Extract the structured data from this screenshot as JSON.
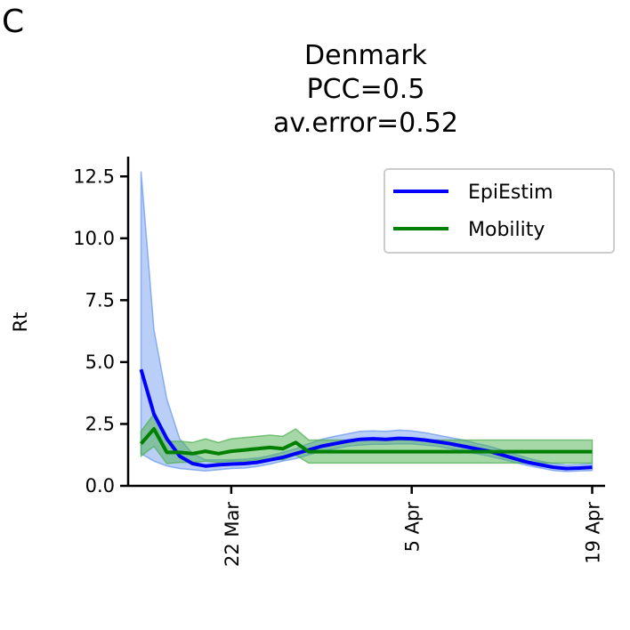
{
  "panel_label": "C",
  "chart_data": {
    "type": "line",
    "title_lines": [
      "Denmark",
      "PCC=0.5",
      "av.error=0.52"
    ],
    "xlabel": "",
    "ylabel": "Rt",
    "ylim": [
      0,
      13.3
    ],
    "yticks": [
      0.0,
      2.5,
      5.0,
      7.5,
      10.0,
      12.5
    ],
    "ytick_labels": [
      "0.0",
      "2.5",
      "5.0",
      "7.5",
      "10.0",
      "12.5"
    ],
    "xlim": [
      "2020-03-14",
      "2020-04-20"
    ],
    "xticks": [
      {
        "label": "22 Mar",
        "date": "2020-03-22"
      },
      {
        "label": "5 Apr",
        "date": "2020-04-05"
      },
      {
        "label": "19 Apr",
        "date": "2020-04-19"
      }
    ],
    "legend": {
      "position": "top-right",
      "entries": [
        "EpiEstim",
        "Mobility"
      ]
    },
    "grid": false,
    "series": [
      {
        "name": "EpiEstim",
        "color": "#0000ff",
        "band_color": "#6495ed",
        "dates": [
          "2020-03-15",
          "2020-03-16",
          "2020-03-17",
          "2020-03-18",
          "2020-03-19",
          "2020-03-20",
          "2020-03-21",
          "2020-03-22",
          "2020-03-23",
          "2020-03-24",
          "2020-03-25",
          "2020-03-26",
          "2020-03-27",
          "2020-03-28",
          "2020-03-29",
          "2020-03-30",
          "2020-03-31",
          "2020-04-01",
          "2020-04-02",
          "2020-04-03",
          "2020-04-04",
          "2020-04-05",
          "2020-04-06",
          "2020-04-07",
          "2020-04-08",
          "2020-04-09",
          "2020-04-10",
          "2020-04-11",
          "2020-04-12",
          "2020-04-13",
          "2020-04-14",
          "2020-04-15",
          "2020-04-16",
          "2020-04-17",
          "2020-04-18",
          "2020-04-19"
        ],
        "values": [
          4.7,
          2.9,
          1.9,
          1.2,
          0.9,
          0.8,
          0.85,
          0.88,
          0.9,
          0.95,
          1.05,
          1.15,
          1.3,
          1.45,
          1.6,
          1.7,
          1.8,
          1.88,
          1.9,
          1.88,
          1.92,
          1.9,
          1.85,
          1.78,
          1.7,
          1.6,
          1.5,
          1.4,
          1.25,
          1.1,
          0.95,
          0.85,
          0.75,
          0.7,
          0.72,
          0.75
        ],
        "lower": [
          1.3,
          1.0,
          0.8,
          0.7,
          0.65,
          0.6,
          0.65,
          0.7,
          0.72,
          0.78,
          0.88,
          1.0,
          1.1,
          1.25,
          1.4,
          1.5,
          1.6,
          1.65,
          1.68,
          1.68,
          1.7,
          1.7,
          1.65,
          1.6,
          1.5,
          1.4,
          1.3,
          1.2,
          1.08,
          0.95,
          0.82,
          0.72,
          0.62,
          0.58,
          0.6,
          0.62
        ],
        "upper": [
          12.7,
          6.3,
          3.5,
          1.9,
          1.3,
          1.05,
          1.05,
          1.05,
          1.08,
          1.12,
          1.22,
          1.35,
          1.5,
          1.7,
          1.88,
          2.0,
          2.1,
          2.2,
          2.22,
          2.2,
          2.25,
          2.22,
          2.15,
          2.05,
          1.95,
          1.85,
          1.72,
          1.6,
          1.45,
          1.28,
          1.12,
          1.0,
          0.9,
          0.84,
          0.86,
          0.9
        ]
      },
      {
        "name": "Mobility",
        "color": "#008000",
        "band_color": "#4caf50",
        "dates": [
          "2020-03-15",
          "2020-03-16",
          "2020-03-17",
          "2020-03-18",
          "2020-03-19",
          "2020-03-20",
          "2020-03-21",
          "2020-03-22",
          "2020-03-23",
          "2020-03-24",
          "2020-03-25",
          "2020-03-26",
          "2020-03-27",
          "2020-03-28",
          "2020-03-29",
          "2020-03-30",
          "2020-03-31",
          "2020-04-01",
          "2020-04-02",
          "2020-04-03",
          "2020-04-04",
          "2020-04-05",
          "2020-04-06",
          "2020-04-07",
          "2020-04-08",
          "2020-04-09",
          "2020-04-10",
          "2020-04-11",
          "2020-04-12",
          "2020-04-13",
          "2020-04-14",
          "2020-04-15",
          "2020-04-16",
          "2020-04-17",
          "2020-04-18",
          "2020-04-19"
        ],
        "values": [
          1.7,
          2.3,
          1.35,
          1.35,
          1.3,
          1.4,
          1.3,
          1.4,
          1.45,
          1.5,
          1.55,
          1.5,
          1.75,
          1.38,
          1.38,
          1.38,
          1.38,
          1.38,
          1.38,
          1.38,
          1.38,
          1.38,
          1.38,
          1.38,
          1.38,
          1.38,
          1.38,
          1.38,
          1.38,
          1.38,
          1.38,
          1.38,
          1.38,
          1.38,
          1.38,
          1.38
        ],
        "lower": [
          1.2,
          1.6,
          0.9,
          0.95,
          0.95,
          1.0,
          0.95,
          1.0,
          1.0,
          1.05,
          1.1,
          1.05,
          1.25,
          0.92,
          0.92,
          0.92,
          0.92,
          0.92,
          0.92,
          0.92,
          0.92,
          0.92,
          0.92,
          0.92,
          0.92,
          0.92,
          0.92,
          0.92,
          0.92,
          0.92,
          0.92,
          0.92,
          0.92,
          0.92,
          0.92,
          0.92
        ],
        "upper": [
          2.2,
          2.9,
          1.8,
          1.8,
          1.75,
          1.9,
          1.75,
          1.9,
          1.95,
          2.0,
          2.05,
          2.0,
          2.3,
          1.85,
          1.85,
          1.85,
          1.85,
          1.85,
          1.85,
          1.85,
          1.85,
          1.85,
          1.85,
          1.85,
          1.85,
          1.85,
          1.85,
          1.85,
          1.85,
          1.85,
          1.85,
          1.85,
          1.85,
          1.85,
          1.85,
          1.85
        ]
      }
    ]
  }
}
